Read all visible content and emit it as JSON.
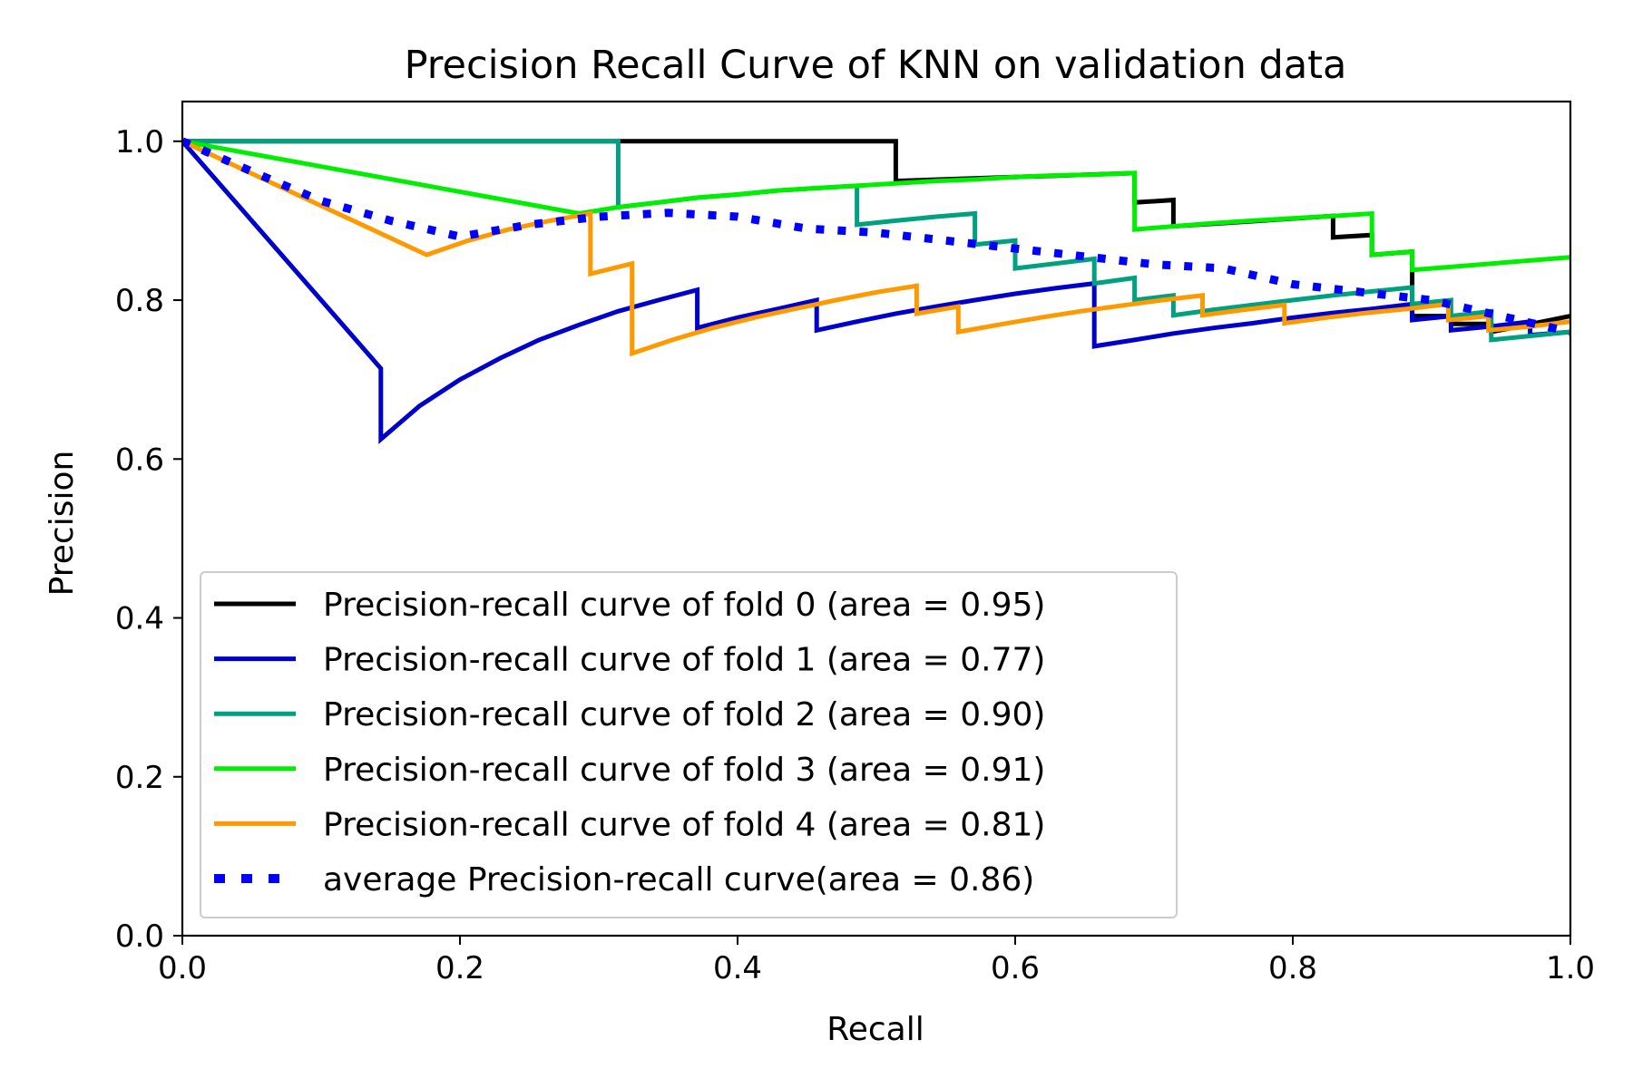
{
  "chart_data": {
    "type": "line",
    "title": "Precision Recall Curve of KNN on validation data",
    "xlabel": "Recall",
    "ylabel": "Precision",
    "xlim": [
      0.0,
      1.0
    ],
    "ylim": [
      0.0,
      1.05
    ],
    "xticks": [
      0.0,
      0.2,
      0.4,
      0.6,
      0.8,
      1.0
    ],
    "yticks": [
      0.0,
      0.2,
      0.4,
      0.6,
      0.8,
      1.0
    ],
    "xtick_labels": [
      "0.0",
      "0.2",
      "0.4",
      "0.6",
      "0.8",
      "1.0"
    ],
    "ytick_labels": [
      "0.0",
      "0.2",
      "0.4",
      "0.6",
      "0.8",
      "1.0"
    ],
    "grid": false,
    "legend_position": "lower-left",
    "series": [
      {
        "name": "Precision-recall curve of fold 0 (area = 0.95)",
        "color": "#000000",
        "style": "solid",
        "points": [
          [
            0.0,
            1.0
          ],
          [
            0.514,
            1.0
          ],
          [
            0.514,
            0.95
          ],
          [
            0.686,
            0.96
          ],
          [
            0.686,
            0.923
          ],
          [
            0.714,
            0.926
          ],
          [
            0.714,
            0.893
          ],
          [
            0.829,
            0.906
          ],
          [
            0.829,
            0.879
          ],
          [
            0.857,
            0.882
          ],
          [
            0.857,
            0.857
          ],
          [
            0.886,
            0.861
          ],
          [
            0.886,
            0.78
          ],
          [
            0.914,
            0.78
          ],
          [
            0.914,
            0.77
          ],
          [
            0.943,
            0.77
          ],
          [
            0.943,
            0.76
          ],
          [
            1.0,
            0.78
          ]
        ]
      },
      {
        "name": "Precision-recall curve of fold 1 (area = 0.77)",
        "color": "#0000cc",
        "style": "solid",
        "points": [
          [
            0.0,
            1.0
          ],
          [
            0.143,
            0.714
          ],
          [
            0.143,
            0.625
          ],
          [
            0.171,
            0.667
          ],
          [
            0.2,
            0.7
          ],
          [
            0.229,
            0.727
          ],
          [
            0.257,
            0.75
          ],
          [
            0.286,
            0.769
          ],
          [
            0.314,
            0.786
          ],
          [
            0.343,
            0.8
          ],
          [
            0.371,
            0.813
          ],
          [
            0.371,
            0.765
          ],
          [
            0.4,
            0.778
          ],
          [
            0.429,
            0.789
          ],
          [
            0.457,
            0.8
          ],
          [
            0.457,
            0.762
          ],
          [
            0.486,
            0.773
          ],
          [
            0.514,
            0.783
          ],
          [
            0.543,
            0.792
          ],
          [
            0.571,
            0.8
          ],
          [
            0.6,
            0.808
          ],
          [
            0.629,
            0.815
          ],
          [
            0.657,
            0.821
          ],
          [
            0.657,
            0.742
          ],
          [
            0.686,
            0.75
          ],
          [
            0.714,
            0.758
          ],
          [
            0.743,
            0.765
          ],
          [
            0.771,
            0.771
          ],
          [
            0.8,
            0.778
          ],
          [
            0.829,
            0.784
          ],
          [
            0.857,
            0.789
          ],
          [
            0.886,
            0.795
          ],
          [
            0.886,
            0.775
          ],
          [
            0.914,
            0.78
          ],
          [
            0.914,
            0.762
          ],
          [
            0.943,
            0.767
          ],
          [
            0.971,
            0.773
          ],
          [
            0.971,
            0.756
          ],
          [
            1.0,
            0.76
          ]
        ]
      },
      {
        "name": "Precision-recall curve of fold 2 (area = 0.90)",
        "color": "#00a080",
        "style": "solid",
        "points": [
          [
            0.0,
            1.0
          ],
          [
            0.314,
            1.0
          ],
          [
            0.314,
            0.917
          ],
          [
            0.343,
            0.923
          ],
          [
            0.371,
            0.929
          ],
          [
            0.4,
            0.933
          ],
          [
            0.429,
            0.938
          ],
          [
            0.457,
            0.941
          ],
          [
            0.486,
            0.944
          ],
          [
            0.486,
            0.895
          ],
          [
            0.514,
            0.9
          ],
          [
            0.543,
            0.905
          ],
          [
            0.571,
            0.909
          ],
          [
            0.571,
            0.87
          ],
          [
            0.6,
            0.875
          ],
          [
            0.6,
            0.84
          ],
          [
            0.629,
            0.846
          ],
          [
            0.657,
            0.852
          ],
          [
            0.657,
            0.821
          ],
          [
            0.686,
            0.828
          ],
          [
            0.686,
            0.8
          ],
          [
            0.714,
            0.806
          ],
          [
            0.714,
            0.781
          ],
          [
            0.743,
            0.788
          ],
          [
            0.771,
            0.794
          ],
          [
            0.8,
            0.8
          ],
          [
            0.829,
            0.806
          ],
          [
            0.857,
            0.811
          ],
          [
            0.886,
            0.816
          ],
          [
            0.886,
            0.795
          ],
          [
            0.914,
            0.8
          ],
          [
            0.914,
            0.78
          ],
          [
            0.943,
            0.786
          ],
          [
            0.943,
            0.75
          ],
          [
            1.0,
            0.76
          ]
        ]
      },
      {
        "name": "Precision-recall curve of fold 3 (area = 0.91)",
        "color": "#00ee00",
        "style": "solid",
        "points": [
          [
            0.0,
            1.0
          ],
          [
            0.286,
            0.909
          ],
          [
            0.314,
            0.917
          ],
          [
            0.343,
            0.923
          ],
          [
            0.371,
            0.929
          ],
          [
            0.4,
            0.933
          ],
          [
            0.429,
            0.938
          ],
          [
            0.457,
            0.941
          ],
          [
            0.486,
            0.944
          ],
          [
            0.514,
            0.947
          ],
          [
            0.543,
            0.95
          ],
          [
            0.571,
            0.952
          ],
          [
            0.6,
            0.955
          ],
          [
            0.629,
            0.957
          ],
          [
            0.657,
            0.958
          ],
          [
            0.686,
            0.96
          ],
          [
            0.686,
            0.889
          ],
          [
            0.714,
            0.893
          ],
          [
            0.743,
            0.897
          ],
          [
            0.771,
            0.9
          ],
          [
            0.8,
            0.903
          ],
          [
            0.829,
            0.906
          ],
          [
            0.857,
            0.909
          ],
          [
            0.857,
            0.857
          ],
          [
            0.886,
            0.861
          ],
          [
            0.886,
            0.838
          ],
          [
            1.0,
            0.854
          ]
        ]
      },
      {
        "name": "Precision-recall curve of fold 4 (area = 0.81)",
        "color": "#ff9900",
        "style": "solid",
        "points": [
          [
            0.0,
            1.0
          ],
          [
            0.176,
            0.857
          ],
          [
            0.206,
            0.875
          ],
          [
            0.235,
            0.889
          ],
          [
            0.265,
            0.9
          ],
          [
            0.294,
            0.909
          ],
          [
            0.294,
            0.833
          ],
          [
            0.324,
            0.846
          ],
          [
            0.324,
            0.733
          ],
          [
            0.353,
            0.75
          ],
          [
            0.382,
            0.765
          ],
          [
            0.412,
            0.778
          ],
          [
            0.441,
            0.789
          ],
          [
            0.471,
            0.8
          ],
          [
            0.5,
            0.81
          ],
          [
            0.529,
            0.818
          ],
          [
            0.529,
            0.783
          ],
          [
            0.559,
            0.792
          ],
          [
            0.559,
            0.76
          ],
          [
            0.588,
            0.769
          ],
          [
            0.618,
            0.778
          ],
          [
            0.647,
            0.786
          ],
          [
            0.676,
            0.793
          ],
          [
            0.706,
            0.8
          ],
          [
            0.735,
            0.806
          ],
          [
            0.735,
            0.781
          ],
          [
            0.765,
            0.788
          ],
          [
            0.794,
            0.794
          ],
          [
            0.794,
            0.771
          ],
          [
            0.824,
            0.778
          ],
          [
            0.853,
            0.784
          ],
          [
            0.882,
            0.789
          ],
          [
            0.912,
            0.795
          ],
          [
            0.912,
            0.775
          ],
          [
            0.941,
            0.78
          ],
          [
            0.941,
            0.762
          ],
          [
            0.971,
            0.767
          ],
          [
            1.0,
            0.773
          ]
        ]
      },
      {
        "name": "average Precision-recall curve(area = 0.86)",
        "color": "#0000ff",
        "style": "dotted",
        "points": [
          [
            0.0,
            1.0
          ],
          [
            0.05,
            0.962
          ],
          [
            0.1,
            0.925
          ],
          [
            0.15,
            0.9
          ],
          [
            0.2,
            0.88
          ],
          [
            0.25,
            0.895
          ],
          [
            0.3,
            0.905
          ],
          [
            0.35,
            0.91
          ],
          [
            0.4,
            0.905
          ],
          [
            0.45,
            0.89
          ],
          [
            0.5,
            0.885
          ],
          [
            0.55,
            0.875
          ],
          [
            0.6,
            0.865
          ],
          [
            0.65,
            0.855
          ],
          [
            0.7,
            0.845
          ],
          [
            0.75,
            0.84
          ],
          [
            0.8,
            0.82
          ],
          [
            0.85,
            0.81
          ],
          [
            0.9,
            0.8
          ],
          [
            0.95,
            0.78
          ],
          [
            1.0,
            0.76
          ]
        ]
      }
    ]
  }
}
